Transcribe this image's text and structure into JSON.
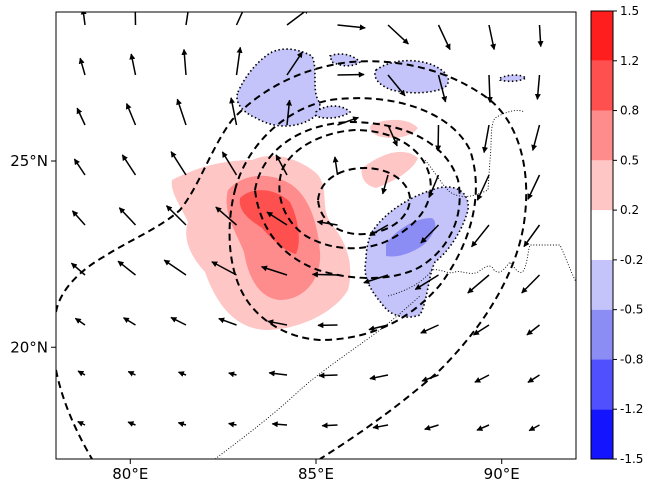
{
  "map": {
    "x_ticks": [
      {
        "value": 80,
        "label": "80°E"
      },
      {
        "value": 85,
        "label": "85°E"
      },
      {
        "value": 90,
        "label": "90°E"
      }
    ],
    "y_ticks": [
      {
        "value": 25,
        "label": "25°N"
      },
      {
        "value": 20,
        "label": "20°N"
      }
    ],
    "lon_range": [
      78,
      92
    ],
    "lat_range": [
      17,
      29
    ]
  },
  "colorbar": {
    "levels": [
      "-1.5",
      "-1.2",
      "-0.8",
      "-0.5",
      "-0.2",
      "0.2",
      "0.5",
      "0.8",
      "1.2",
      "1.5"
    ],
    "colors": [
      "#1414ff",
      "#5050ff",
      "#8c8cf5",
      "#c4c4fa",
      "#ffffff",
      "#ffc6c6",
      "#ff8c8c",
      "#ff5050",
      "#ff1e1e"
    ]
  },
  "colors": {
    "pos_light": "#ffc6c6",
    "pos_mid": "#ff8c8c",
    "pos_dark": "#ff5050",
    "neg_light": "#c4c4fa",
    "neg_mid": "#8c8cf5"
  }
}
